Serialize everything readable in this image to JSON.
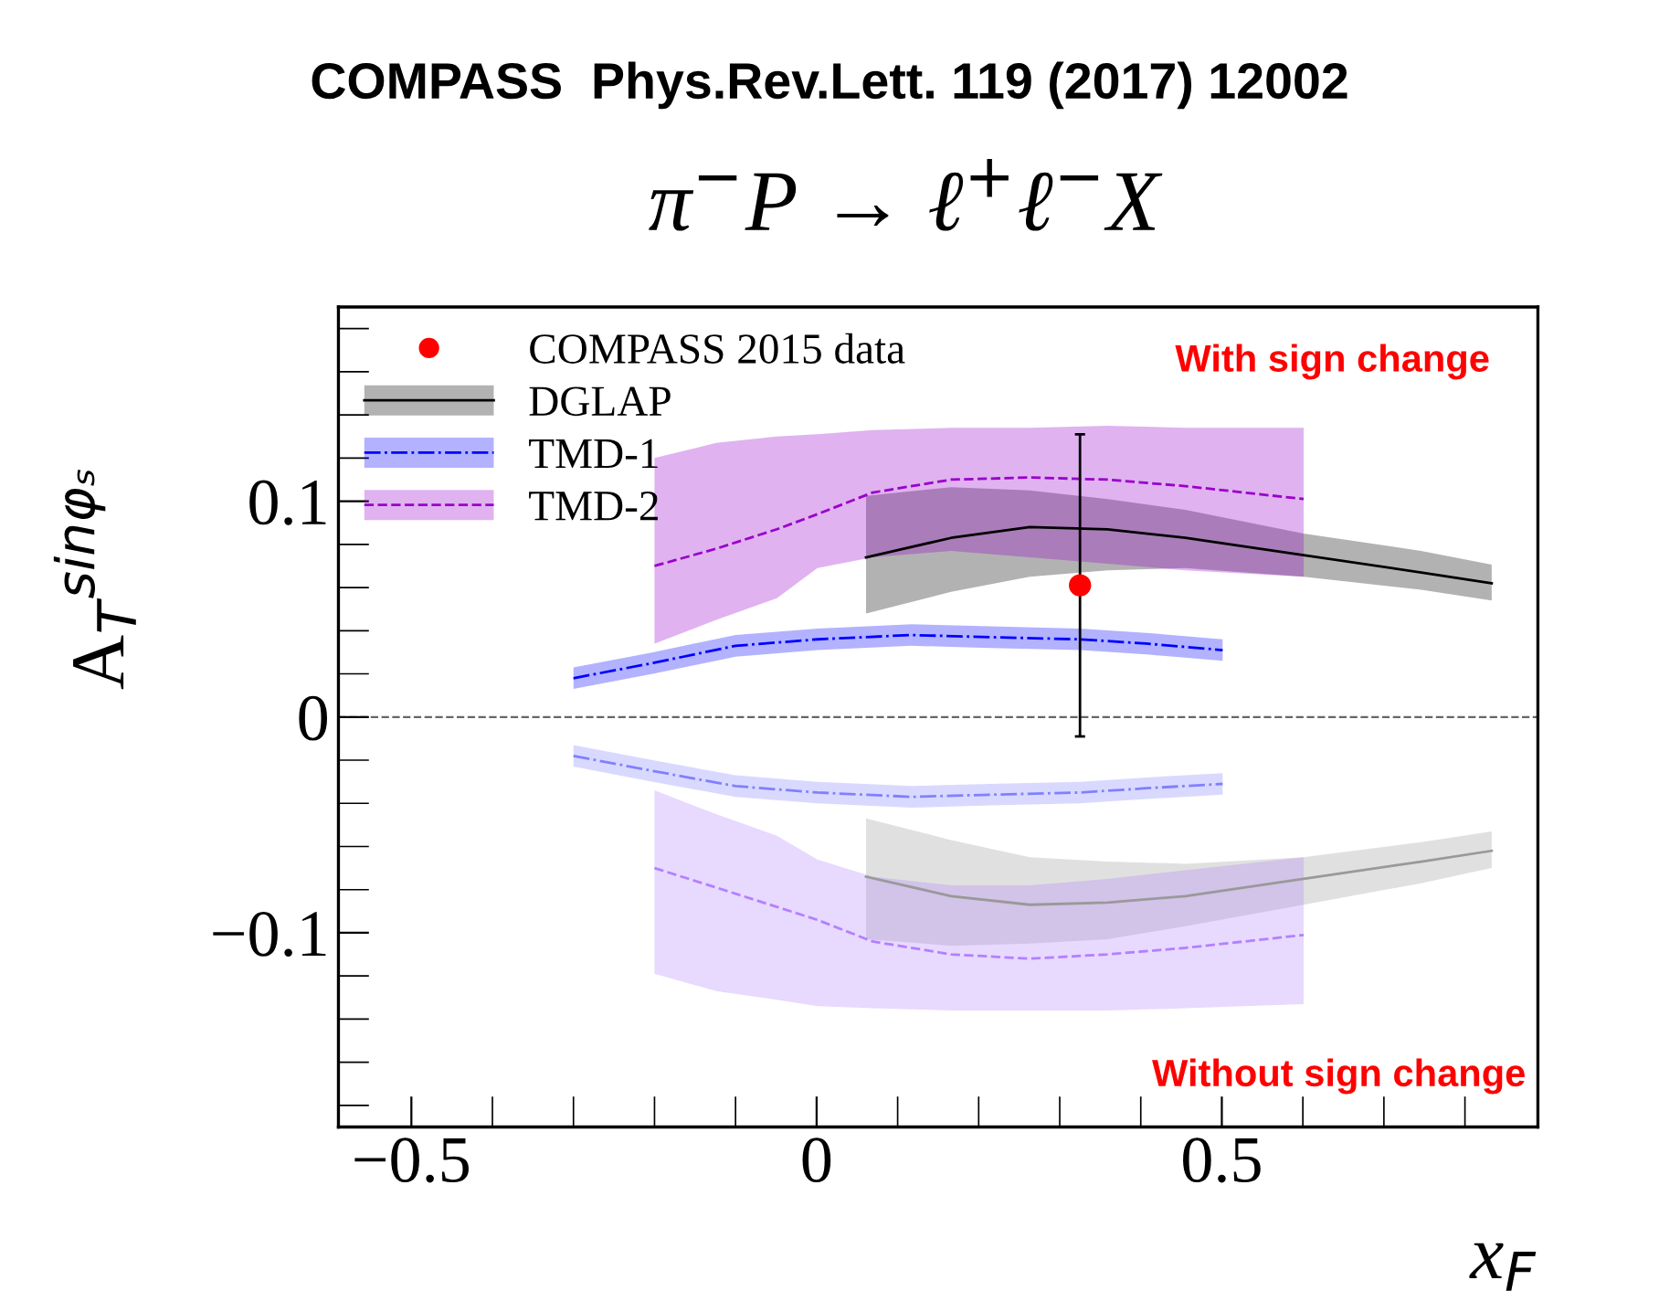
{
  "chart_data": {
    "type": "line",
    "title": "COMPASS  Phys.Rev.Lett. 119 (2017) 12002",
    "subtitle": "π$^{−}$P → ℓ$^{+}$ℓ$^{−}$X",
    "xlabel": "x$_{F}$",
    "ylabel": "A$_{T}$$^{sinφₛ}$",
    "annotations": [
      "With sign change",
      "Without sign change"
    ],
    "xlim": [
      -0.59,
      0.89
    ],
    "ylim": [
      -0.19,
      0.19
    ],
    "xticks": [
      {
        "value": -0.5,
        "label": "−0.5"
      },
      0,
      0.5
    ],
    "yticks": [
      {
        "value": -0.1,
        "label": "−0.1"
      },
      0,
      0.1
    ],
    "ref_lines": [
      {
        "axis": "y",
        "value": 0,
        "color": "#666666",
        "line_style": "dashed"
      }
    ],
    "grid": false,
    "legend": "top left",
    "series": [
      {
        "name": "COMPASS 2015 data",
        "type": "scatter",
        "marker": "circle",
        "color": "#ff0000",
        "x": [
          0.325
        ],
        "values": [
          0.061
        ],
        "errors": [
          [
            -0.009,
            0.131
          ]
        ]
      },
      {
        "name": "DGLAP",
        "line_style": "solid",
        "color": "#000000",
        "x": [
          0.061,
          0.166,
          0.263,
          0.359,
          0.455,
          0.601,
          0.746,
          0.833
        ],
        "values": [
          0.074,
          0.083,
          0.088,
          0.087,
          0.083,
          0.075,
          0.067,
          0.062
        ],
        "lower": [
          0.048,
          0.058,
          0.065,
          0.068,
          0.069,
          0.065,
          0.059,
          0.054
        ],
        "upper": [
          0.1025,
          0.1065,
          0.105,
          0.101,
          0.096,
          0.085,
          0.077,
          0.0706
        ]
      },
      {
        "name": "TMD-1",
        "line_style": "dashdot",
        "color": "#0000ff",
        "x": [
          -0.3,
          -0.202,
          -0.1,
          0.001,
          0.117,
          0.214,
          0.325,
          0.407,
          0.501
        ],
        "values": [
          0.018,
          0.025,
          0.033,
          0.036,
          0.038,
          0.037,
          0.036,
          0.034,
          0.031
        ],
        "lower": [
          0.013,
          0.02,
          0.028,
          0.031,
          0.033,
          0.032,
          0.031,
          0.029,
          0.026
        ],
        "upper": [
          0.023,
          0.03,
          0.038,
          0.041,
          0.043,
          0.042,
          0.041,
          0.039,
          0.036
        ]
      },
      {
        "name": "TMD-2",
        "line_style": "dashed",
        "color": "#9900cc",
        "x": [
          -0.2,
          -0.124,
          -0.049,
          0.001,
          0.069,
          0.166,
          0.263,
          0.359,
          0.455,
          0.601
        ],
        "values": [
          0.07,
          0.078,
          0.087,
          0.094,
          0.104,
          0.11,
          0.111,
          0.11,
          0.107,
          0.101
        ],
        "lower": [
          0.034,
          0.045,
          0.055,
          0.069,
          0.074,
          0.077,
          0.074,
          0.071,
          0.068,
          0.065
        ],
        "upper": [
          0.12,
          0.127,
          0.13,
          0.131,
          0.133,
          0.134,
          0.134,
          0.135,
          0.134,
          0.134
        ]
      },
      {
        "line_style": "solid",
        "color": "#999999",
        "x": [
          0.061,
          0.166,
          0.263,
          0.359,
          0.455,
          0.601,
          0.746,
          0.833
        ],
        "values": [
          -0.074,
          -0.083,
          -0.087,
          -0.086,
          -0.083,
          -0.075,
          -0.067,
          -0.062
        ],
        "lower": [
          -0.103,
          -0.106,
          -0.105,
          -0.103,
          -0.097,
          -0.087,
          -0.077,
          -0.07
        ],
        "upper": [
          -0.047,
          -0.057,
          -0.065,
          -0.067,
          -0.068,
          -0.065,
          -0.058,
          -0.053
        ]
      },
      {
        "line_style": "dashdot",
        "color": "#8080ff",
        "x": [
          -0.3,
          -0.202,
          -0.1,
          0.001,
          0.117,
          0.214,
          0.325,
          0.407,
          0.501
        ],
        "values": [
          -0.018,
          -0.025,
          -0.032,
          -0.035,
          -0.037,
          -0.036,
          -0.035,
          -0.033,
          -0.031
        ],
        "lower": [
          -0.023,
          -0.03,
          -0.037,
          -0.04,
          -0.042,
          -0.041,
          -0.04,
          -0.038,
          -0.036
        ],
        "upper": [
          -0.013,
          -0.02,
          -0.027,
          -0.03,
          -0.032,
          -0.031,
          -0.03,
          -0.028,
          -0.026
        ]
      },
      {
        "line_style": "dashed",
        "color": "#b380ff",
        "x": [
          -0.2,
          -0.124,
          -0.049,
          0.001,
          0.069,
          0.166,
          0.263,
          0.359,
          0.455,
          0.601
        ],
        "values": [
          -0.07,
          -0.079,
          -0.088,
          -0.094,
          -0.104,
          -0.11,
          -0.112,
          -0.11,
          -0.107,
          -0.101
        ],
        "lower": [
          -0.119,
          -0.127,
          -0.131,
          -0.134,
          -0.135,
          -0.136,
          -0.136,
          -0.136,
          -0.135,
          -0.133
        ],
        "upper": [
          -0.034,
          -0.045,
          -0.055,
          -0.066,
          -0.074,
          -0.078,
          -0.078,
          -0.075,
          -0.071,
          -0.065
        ]
      }
    ]
  }
}
